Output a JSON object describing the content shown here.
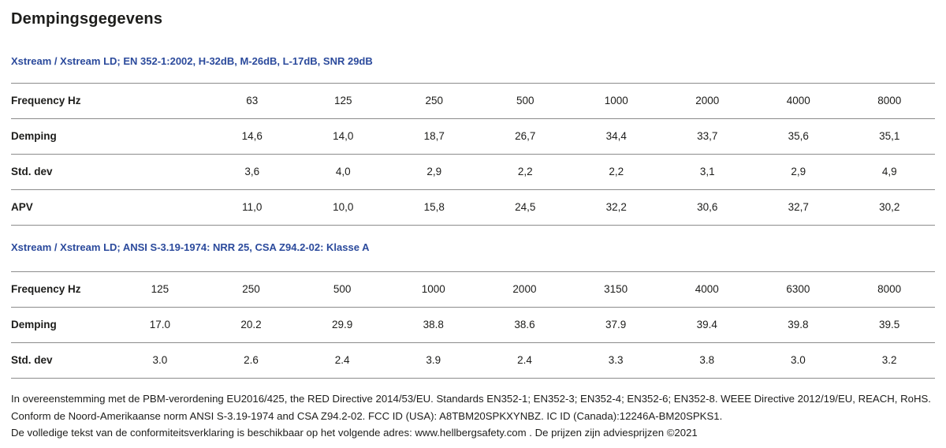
{
  "page": {
    "title": "Dempingsgegevens"
  },
  "colors": {
    "accent_blue": "#2b4a9c",
    "rule_gray": "#8c8c8c",
    "text": "#1d1d1b"
  },
  "tables": [
    {
      "caption": "Xstream / Xstream LD; EN 352-1:2002, H-32dB, M-26dB, L-17dB, SNR 29dB",
      "rows": [
        {
          "label": "Frequency Hz",
          "values": [
            "63",
            "125",
            "250",
            "500",
            "1000",
            "2000",
            "4000",
            "8000"
          ]
        },
        {
          "label": "Demping",
          "values": [
            "14,6",
            "14,0",
            "18,7",
            "26,7",
            "34,4",
            "33,7",
            "35,6",
            "35,1"
          ]
        },
        {
          "label": "Std. dev",
          "values": [
            "3,6",
            "4,0",
            "2,9",
            "2,2",
            "2,2",
            "3,1",
            "2,9",
            "4,9"
          ]
        },
        {
          "label": "APV",
          "values": [
            "11,0",
            "10,0",
            "15,8",
            "24,5",
            "32,2",
            "30,6",
            "32,7",
            "30,2"
          ]
        }
      ]
    },
    {
      "caption": "Xstream / Xstream LD; ANSI S-3.19-1974: NRR 25, CSA Z94.2-02: Klasse A",
      "rows": [
        {
          "label": "Frequency Hz",
          "values": [
            "125",
            "250",
            "500",
            "1000",
            "2000",
            "3150",
            "4000",
            "6300",
            "8000"
          ]
        },
        {
          "label": "Demping",
          "values": [
            "17.0",
            "20.2",
            "29.9",
            "38.8",
            "38.6",
            "37.9",
            "39.4",
            "39.8",
            "39.5"
          ]
        },
        {
          "label": "Std. dev",
          "values": [
            "3.0",
            "2.6",
            "2.4",
            "3.9",
            "2.4",
            "3.3",
            "3.8",
            "3.0",
            "3.2"
          ]
        }
      ]
    }
  ],
  "footer": {
    "lines": [
      "In overeenstemming met de PBM-verordening EU2016/425, the RED Directive 2014/53/EU. Standards EN352-1; EN352-3; EN352-4; EN352-6; EN352-8. WEEE Directive 2012/19/EU, REACH, RoHS.",
      "Conform de Noord-Amerikaanse norm ANSI S-3.19-1974 and CSA Z94.2-02. FCC ID (USA): A8TBM20SPKXYNBZ. IC ID (Canada):12246A-BM20SPKS1.",
      "De volledige tekst van de conformiteitsverklaring is beschikbaar op het volgende adres: www.hellbergsafety.com . De prijzen zijn adviesprijzen ©2021"
    ]
  }
}
